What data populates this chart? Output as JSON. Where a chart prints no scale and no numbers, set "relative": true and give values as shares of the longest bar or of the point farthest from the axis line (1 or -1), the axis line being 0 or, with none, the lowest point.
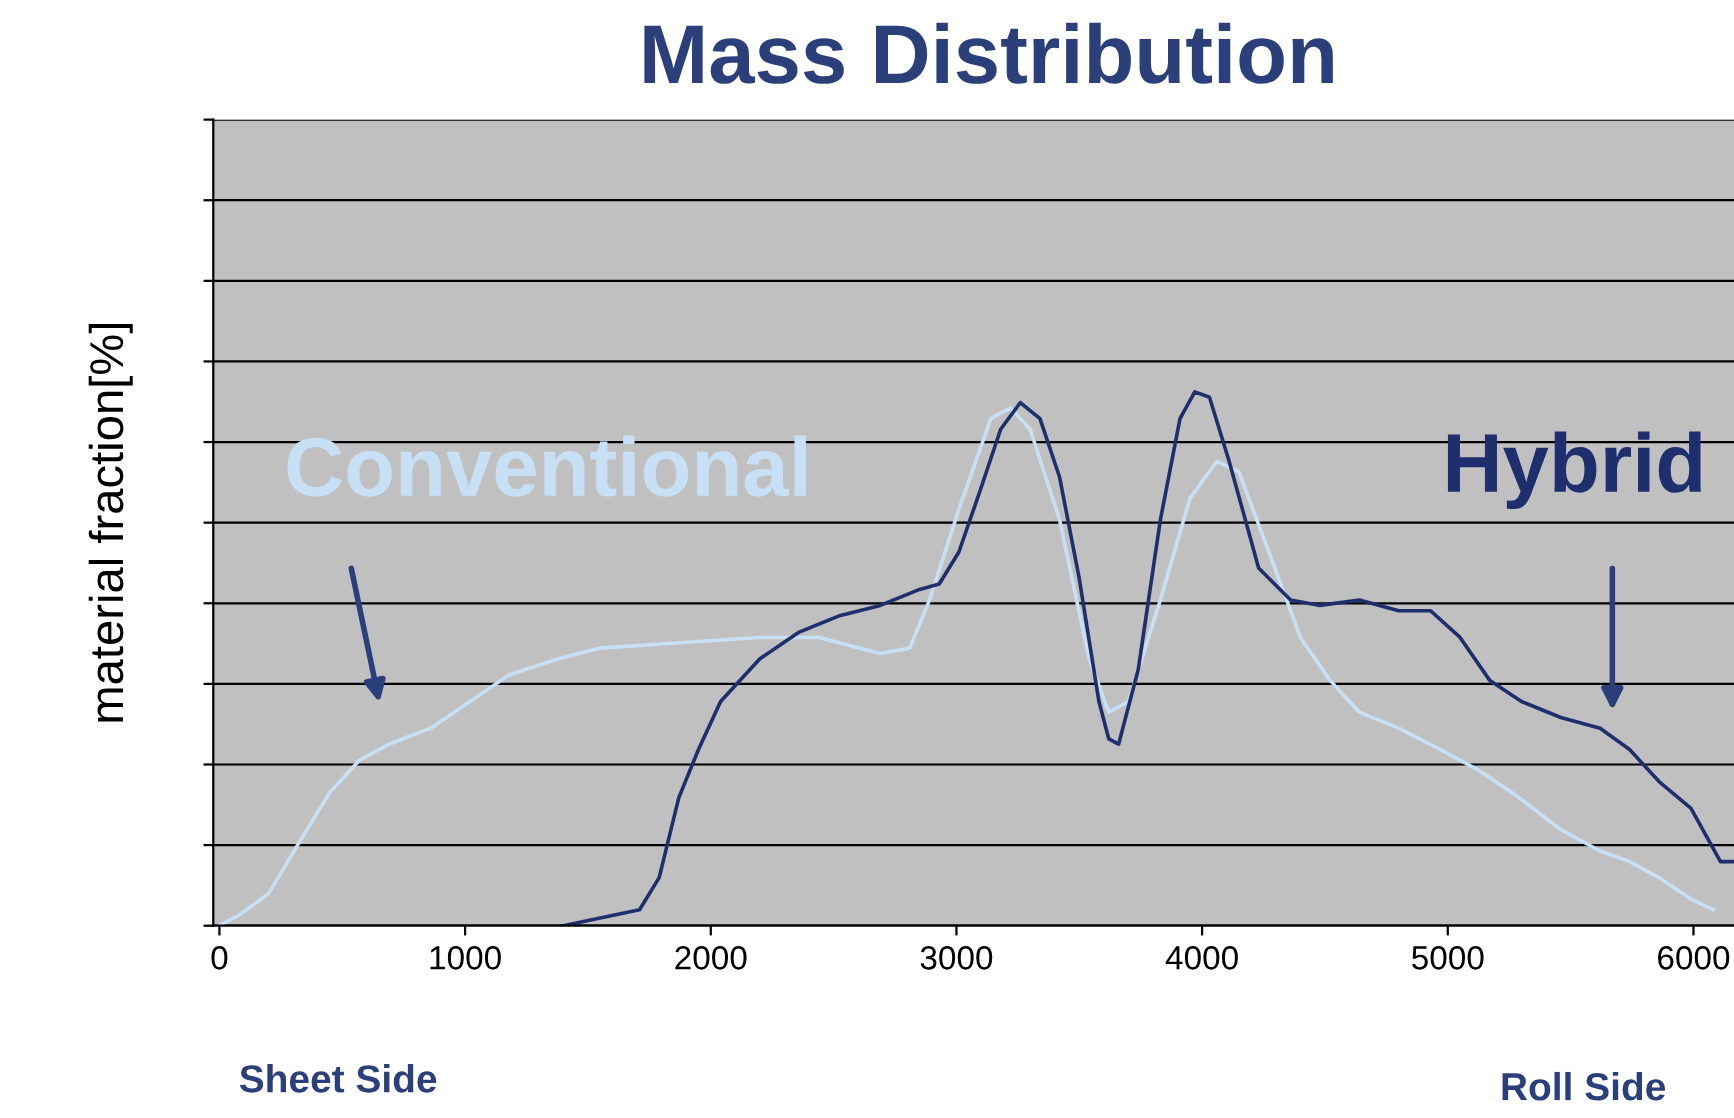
{
  "chart_data": {
    "type": "line",
    "title": "Mass Distribution",
    "ylabel": "material fraction[%]",
    "relative": true,
    "xlim": [
      -25,
      6165
    ],
    "xticks": [
      0,
      1000,
      2000,
      3000,
      4000,
      5000,
      6000
    ],
    "grid": "y",
    "legend": false,
    "tick_labels": "x",
    "annotations": [
      "Sheet Side",
      "Roll Side"
    ],
    "series": [
      {
        "name": "Conventional",
        "color": "#c8e0f5",
        "x": [
          0,
          80,
          200,
          330,
          450,
          570,
          690,
          860,
          1020,
          1180,
          1380,
          1550,
          1870,
          2200,
          2440,
          2690,
          2810,
          2890,
          3010,
          3140,
          3220,
          3300,
          3420,
          3540,
          3620,
          3700,
          3830,
          3950,
          4060,
          4150,
          4280,
          4400,
          4520,
          4640,
          4800,
          4970,
          5130,
          5290,
          5460,
          5620,
          5740,
          5860,
          5990,
          6080
        ],
        "values": [
          0,
          0.02,
          0.06,
          0.16,
          0.25,
          0.31,
          0.34,
          0.37,
          0.42,
          0.47,
          0.5,
          0.52,
          0.53,
          0.54,
          0.54,
          0.51,
          0.52,
          0.61,
          0.78,
          0.95,
          0.97,
          0.93,
          0.76,
          0.5,
          0.4,
          0.42,
          0.61,
          0.8,
          0.87,
          0.85,
          0.69,
          0.54,
          0.46,
          0.4,
          0.37,
          0.33,
          0.29,
          0.24,
          0.18,
          0.14,
          0.12,
          0.09,
          0.05,
          0.03
        ]
      },
      {
        "name": "Hybrid",
        "color": "#1f2f6e",
        "x": [
          1400,
          1710,
          1790,
          1870,
          1950,
          2040,
          2200,
          2360,
          2520,
          2690,
          2850,
          2930,
          3010,
          3100,
          3180,
          3260,
          3340,
          3420,
          3500,
          3580,
          3620,
          3660,
          3740,
          3830,
          3910,
          3970,
          4030,
          4110,
          4230,
          4360,
          4480,
          4640,
          4800,
          4930,
          5050,
          5170,
          5300,
          5460,
          5620,
          5740,
          5860,
          5990,
          6110,
          6160
        ],
        "values": [
          0,
          0.03,
          0.09,
          0.24,
          0.33,
          0.42,
          0.5,
          0.55,
          0.58,
          0.6,
          0.63,
          0.64,
          0.7,
          0.82,
          0.93,
          0.98,
          0.95,
          0.84,
          0.65,
          0.42,
          0.35,
          0.34,
          0.48,
          0.76,
          0.95,
          1,
          0.99,
          0.87,
          0.67,
          0.61,
          0.6,
          0.61,
          0.59,
          0.59,
          0.54,
          0.46,
          0.42,
          0.39,
          0.37,
          0.33,
          0.27,
          0.22,
          0.12,
          0.12
        ]
      }
    ]
  }
}
